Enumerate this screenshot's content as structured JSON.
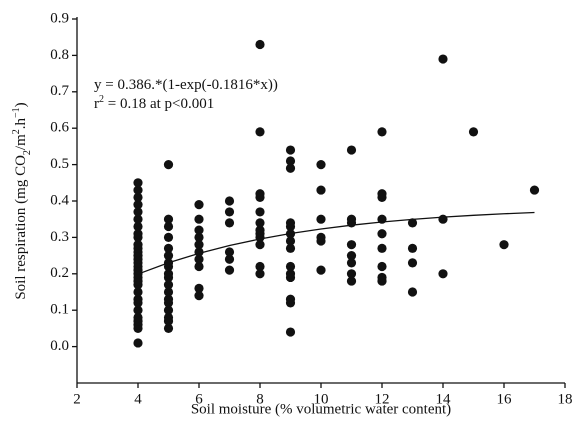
{
  "chart_data": {
    "type": "scatter",
    "x_label": "Soil moisture (% volumetric water content)",
    "y_label_parts": [
      "Soil respiration (mg CO",
      "2",
      "/m",
      "2",
      ".h",
      "−1",
      ")"
    ],
    "annotations": [
      [
        "y = 0.386.*(1-exp(-0.1816*x))"
      ],
      [
        "r",
        "2",
        " = 0.18 at p<0.001"
      ]
    ],
    "xlim": [
      2,
      18
    ],
    "xticks": [
      2,
      4,
      6,
      8,
      10,
      12,
      14,
      16,
      18
    ],
    "ylim": [
      -0.1,
      0.9
    ],
    "yticks": [
      {
        "value": 0,
        "label": "0.0"
      },
      0.1,
      0.2,
      0.3,
      0.4,
      0.5,
      0.6,
      0.7,
      0.8,
      0.9
    ],
    "series": [
      {
        "color": "#111111",
        "x": [
          4,
          4,
          4,
          4,
          4,
          4,
          4,
          4,
          4,
          4,
          4,
          4,
          4,
          4,
          4,
          4,
          4,
          4,
          4,
          4,
          4,
          4,
          4,
          4,
          4,
          4,
          4,
          4,
          4,
          4,
          5,
          5,
          5,
          5,
          5,
          5,
          5,
          5,
          5,
          5,
          5,
          5,
          5,
          5,
          5,
          5,
          5,
          5,
          6,
          6,
          6,
          6,
          6,
          6,
          6,
          6,
          6,
          6,
          7,
          7,
          7,
          7,
          7,
          7,
          8,
          8,
          8,
          8,
          8,
          8,
          8,
          8,
          8,
          8,
          8,
          8,
          9,
          9,
          9,
          9,
          9,
          9,
          9,
          9,
          9,
          9,
          9,
          9,
          9,
          9,
          10,
          10,
          10,
          10,
          10,
          10,
          11,
          11,
          11,
          11,
          11,
          11,
          11,
          11,
          12,
          12,
          12,
          12,
          12,
          12,
          12,
          12,
          12,
          13,
          13,
          13,
          13,
          14,
          14,
          14,
          15,
          16,
          17
        ],
        "values": [
          0.01,
          0.05,
          0.06,
          0.07,
          0.08,
          0.1,
          0.12,
          0.13,
          0.15,
          0.17,
          0.18,
          0.19,
          0.2,
          0.21,
          0.22,
          0.23,
          0.24,
          0.25,
          0.26,
          0.27,
          0.28,
          0.3,
          0.31,
          0.33,
          0.35,
          0.37,
          0.39,
          0.41,
          0.43,
          0.45,
          0.05,
          0.07,
          0.08,
          0.1,
          0.12,
          0.13,
          0.15,
          0.17,
          0.19,
          0.2,
          0.22,
          0.23,
          0.25,
          0.27,
          0.3,
          0.33,
          0.35,
          0.5,
          0.14,
          0.16,
          0.22,
          0.24,
          0.26,
          0.28,
          0.3,
          0.32,
          0.35,
          0.39,
          0.21,
          0.24,
          0.26,
          0.34,
          0.37,
          0.4,
          0.2,
          0.22,
          0.28,
          0.3,
          0.31,
          0.32,
          0.34,
          0.37,
          0.41,
          0.42,
          0.59,
          0.83,
          0.04,
          0.12,
          0.13,
          0.19,
          0.2,
          0.22,
          0.27,
          0.29,
          0.31,
          0.33,
          0.34,
          0.49,
          0.51,
          0.54,
          0.21,
          0.29,
          0.3,
          0.35,
          0.43,
          0.5,
          0.18,
          0.2,
          0.23,
          0.25,
          0.28,
          0.34,
          0.35,
          0.54,
          0.18,
          0.19,
          0.22,
          0.27,
          0.31,
          0.35,
          0.41,
          0.42,
          0.59,
          0.15,
          0.23,
          0.27,
          0.34,
          0.2,
          0.35,
          0.79,
          0.59,
          0.28,
          0.43
        ]
      }
    ],
    "fit": {
      "color": "#111111",
      "x": [
        4,
        5,
        6,
        7,
        8,
        9,
        10,
        11,
        12,
        13,
        14,
        15,
        16,
        17
      ],
      "values": [
        0.1993,
        0.2303,
        0.2561,
        0.2777,
        0.2957,
        0.3107,
        0.3232,
        0.3336,
        0.3423,
        0.3496,
        0.3556,
        0.3607,
        0.3649,
        0.3684
      ]
    }
  }
}
